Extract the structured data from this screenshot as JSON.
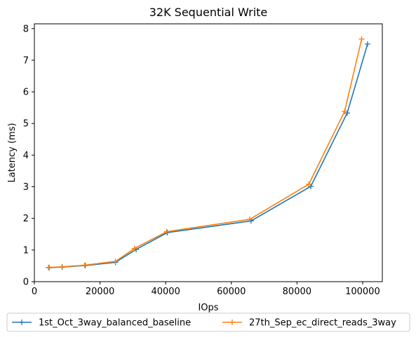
{
  "chart_data": {
    "type": "line",
    "title": "32K  Sequential Write",
    "xlabel": "IOps",
    "ylabel": "Latency (ms)",
    "xlim": [
      0,
      106000
    ],
    "ylim": [
      0,
      8.15
    ],
    "xticks": [
      0,
      20000,
      40000,
      60000,
      80000,
      100000
    ],
    "yticks": [
      0,
      1,
      2,
      3,
      4,
      5,
      6,
      7,
      8
    ],
    "grid": false,
    "legend_position": "bottom-center",
    "marker": "plus",
    "series": [
      {
        "name": "1st_Oct_3way_balanced_baseline",
        "color": "#1f77b4",
        "x": [
          4500,
          8500,
          15500,
          24700,
          31000,
          40500,
          66000,
          84200,
          95300,
          101500
        ],
        "y": [
          0.44,
          0.46,
          0.51,
          0.61,
          1.02,
          1.55,
          1.92,
          3.01,
          5.33,
          7.51
        ]
      },
      {
        "name": "27th_Sep_ec_direct_reads_3way",
        "color": "#ff7f0e",
        "x": [
          4300,
          8400,
          15300,
          24700,
          30500,
          40300,
          65600,
          83600,
          94500,
          99700
        ],
        "y": [
          0.45,
          0.47,
          0.52,
          0.64,
          1.05,
          1.58,
          1.97,
          3.08,
          5.38,
          7.67
        ]
      }
    ]
  }
}
